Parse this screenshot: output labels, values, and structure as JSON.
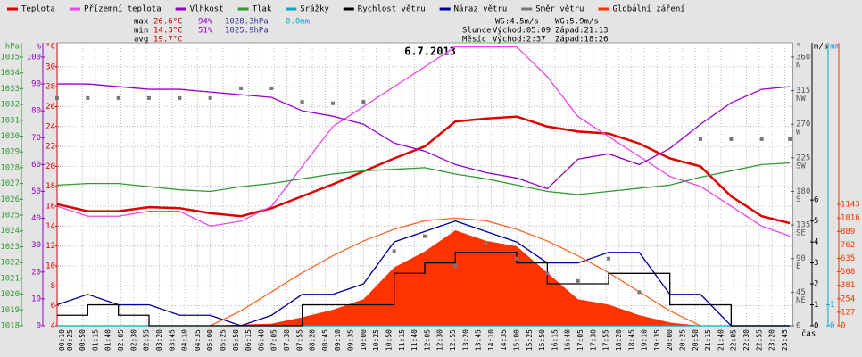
{
  "chart_data": {
    "type": "line",
    "title": "6.7.2013",
    "x_label": "čas",
    "stats": {
      "colors": [
        "#000000",
        "#cc0000",
        "#9900cc",
        "#333399",
        "#00aacc"
      ],
      "rows": [
        [
          "max",
          "26.6°C",
          "94%",
          "1028.3hPa",
          "0.0mm"
        ],
        [
          "min",
          "14.3°C",
          "51%",
          "1025.9hPa"
        ],
        [
          "avg",
          "19.7°C"
        ]
      ]
    },
    "info": [
      [
        "WS:4.5m/s",
        "WG:5.9m/s"
      ],
      [
        "Slunce",
        "Východ:05:09",
        "Západ:21:13"
      ],
      [
        "Měsíc",
        "Východ:2:37",
        "Západ:18:26"
      ]
    ],
    "xlim": [
      0,
      1440
    ],
    "xticks": [
      {
        "value": 10,
        "label": "00:10"
      },
      {
        "value": 25,
        "label": "00:25"
      },
      {
        "value": 50,
        "label": "00:50"
      },
      {
        "value": 75,
        "label": "01:15"
      },
      {
        "value": 100,
        "label": "01:40"
      },
      {
        "value": 125,
        "label": "02:05"
      },
      {
        "value": 150,
        "label": "02:30"
      },
      {
        "value": 175,
        "label": "02:55"
      },
      {
        "value": 200,
        "label": "03:20"
      },
      {
        "value": 225,
        "label": "03:45"
      },
      {
        "value": 250,
        "label": "04:10"
      },
      {
        "value": 275,
        "label": "04:35"
      },
      {
        "value": 300,
        "label": "05:00"
      },
      {
        "value": 325,
        "label": "05:25"
      },
      {
        "value": 350,
        "label": "05:50"
      },
      {
        "value": 375,
        "label": "06:15"
      },
      {
        "value": 400,
        "label": "06:40"
      },
      {
        "value": 425,
        "label": "07:05"
      },
      {
        "value": 450,
        "label": "07:30"
      },
      {
        "value": 475,
        "label": "07:55"
      },
      {
        "value": 500,
        "label": "08:20"
      },
      {
        "value": 525,
        "label": "08:45"
      },
      {
        "value": 550,
        "label": "09:10"
      },
      {
        "value": 575,
        "label": "09:35"
      },
      {
        "value": 600,
        "label": "10:00"
      },
      {
        "value": 625,
        "label": "10:25"
      },
      {
        "value": 650,
        "label": "10:50"
      },
      {
        "value": 675,
        "label": "11:15"
      },
      {
        "value": 700,
        "label": "11:40"
      },
      {
        "value": 725,
        "label": "12:05"
      },
      {
        "value": 750,
        "label": "12:30"
      },
      {
        "value": 775,
        "label": "12:55"
      },
      {
        "value": 800,
        "label": "13:20"
      },
      {
        "value": 825,
        "label": "13:45"
      },
      {
        "value": 850,
        "label": "14:10"
      },
      {
        "value": 875,
        "label": "14:35"
      },
      {
        "value": 900,
        "label": "15:00"
      },
      {
        "value": 925,
        "label": "15:25"
      },
      {
        "value": 950,
        "label": "15:50"
      },
      {
        "value": 975,
        "label": "16:15"
      },
      {
        "value": 1000,
        "label": "16:40"
      },
      {
        "value": 1025,
        "label": "17:05"
      },
      {
        "value": 1050,
        "label": "17:30"
      },
      {
        "value": 1075,
        "label": "17:55"
      },
      {
        "value": 1100,
        "label": "18:20"
      },
      {
        "value": 1125,
        "label": "18:45"
      },
      {
        "value": 1150,
        "label": "19:10"
      },
      {
        "value": 1175,
        "label": "19:35"
      },
      {
        "value": 1200,
        "label": "20:00"
      },
      {
        "value": 1225,
        "label": "20:25"
      },
      {
        "value": 1250,
        "label": "20:50"
      },
      {
        "value": 1275,
        "label": "21:15"
      },
      {
        "value": 1300,
        "label": "21:40"
      },
      {
        "value": 1325,
        "label": "22:05"
      },
      {
        "value": 1350,
        "label": "22:30"
      },
      {
        "value": 1375,
        "label": "22:55"
      },
      {
        "value": 1400,
        "label": "23:20"
      },
      {
        "value": 1425,
        "label": "23:45"
      }
    ],
    "axes": {
      "hpa": {
        "label": "hPa",
        "color": "#339933",
        "ylim": [
          1018,
          1035.9
        ],
        "yticks": [
          1018,
          1019,
          1020,
          1021,
          1022,
          1023,
          1024,
          1025,
          1026,
          1027,
          1028,
          1029,
          1030,
          1031,
          1032,
          1033,
          1034,
          1035
        ]
      },
      "pct": {
        "label": "%",
        "color": "#9900cc",
        "ylim": [
          0,
          105.3
        ],
        "yticks": [
          0,
          10,
          20,
          30,
          40,
          50,
          60,
          70,
          80,
          90,
          100
        ]
      },
      "temp": {
        "label": "°C",
        "color": "#dd0000",
        "ylim": [
          4,
          32.4
        ],
        "yticks": [
          4,
          6,
          8,
          10,
          12,
          14,
          16,
          18,
          20,
          22,
          24,
          26,
          28,
          30
        ],
        "grid": true
      },
      "dir": {
        "label": "°",
        "color": "#555555",
        "ylim": [
          0,
          379
        ],
        "yticks": [
          0,
          45,
          90,
          135,
          180,
          225,
          270,
          315,
          360
        ],
        "names": [
          null,
          "NE",
          "E",
          "SE",
          "S",
          "SW",
          "W",
          "NW",
          "N"
        ]
      },
      "ms": {
        "label": "m/s",
        "color": "#000000",
        "ylim": [
          0,
          13.5
        ],
        "yticks": [
          0,
          1,
          2,
          3,
          4,
          5,
          6
        ]
      },
      "mm": {
        "label": "mm",
        "color": "#00aacc",
        "ylim": [
          0,
          13.5
        ],
        "yticks": [
          0,
          1
        ]
      },
      "wm": {
        "color": "#ff3300",
        "ylim": [
          0,
          2667
        ],
        "yticks": [
          0,
          127,
          254,
          381,
          508,
          635,
          762,
          889,
          1016,
          1143
        ]
      }
    },
    "x": [
      0,
      60,
      120,
      180,
      240,
      300,
      360,
      420,
      480,
      540,
      600,
      660,
      720,
      780,
      840,
      900,
      960,
      1020,
      1080,
      1140,
      1200,
      1260,
      1320,
      1380,
      1435
    ],
    "series": [
      {
        "name": "Teplota",
        "color": "#dd0000",
        "axis": "temp",
        "style": "line",
        "values": [
          16.2,
          15.5,
          15.5,
          15.9,
          15.8,
          15.3,
          15.0,
          15.8,
          17.0,
          18.2,
          19.5,
          20.8,
          22.0,
          24.5,
          24.8,
          25.0,
          24.0,
          23.5,
          23.3,
          22.3,
          20.8,
          20.0,
          17.0,
          15.0,
          14.3
        ]
      },
      {
        "name": "Přízemní teplota",
        "color": "#ee44ee",
        "axis": "temp",
        "style": "line",
        "values": [
          16,
          15,
          15,
          15.5,
          15.5,
          14,
          14.5,
          16,
          20,
          24,
          26,
          28,
          30,
          32,
          32,
          32,
          29,
          25,
          23,
          21,
          19,
          18,
          16,
          14,
          13
        ]
      },
      {
        "name": "Vlhkost",
        "color": "#9900cc",
        "axis": "pct",
        "style": "line",
        "values": [
          90,
          90,
          89,
          88,
          88,
          87,
          86,
          85,
          80,
          78,
          75,
          68,
          65,
          60,
          57,
          55,
          51,
          62,
          64,
          60,
          66,
          75,
          83,
          88,
          89
        ]
      },
      {
        "name": "Tlak",
        "color": "#339933",
        "axis": "hpa",
        "style": "line",
        "values": [
          1026.9,
          1027.0,
          1027.0,
          1026.8,
          1026.6,
          1026.5,
          1026.8,
          1027.0,
          1027.3,
          1027.6,
          1027.8,
          1027.9,
          1028.0,
          1027.6,
          1027.3,
          1026.9,
          1026.5,
          1026.3,
          1026.5,
          1026.7,
          1026.9,
          1027.4,
          1027.8,
          1028.2,
          1028.3
        ]
      },
      {
        "name": "Srážky",
        "color": "#00aacc",
        "axis": "mm",
        "style": "line",
        "values": [
          0,
          0,
          0,
          0,
          0,
          0,
          0,
          0,
          0,
          0,
          0,
          0,
          0,
          0,
          0,
          0,
          0,
          0,
          0,
          0,
          0,
          0,
          0,
          0,
          0
        ]
      },
      {
        "name": "Rychlost větru",
        "color": "#000000",
        "axis": "ms",
        "style": "step",
        "values": [
          0.5,
          1,
          0.5,
          0,
          0,
          0,
          0,
          0,
          1,
          1,
          1,
          2.5,
          3,
          3.5,
          3.5,
          3,
          2,
          2,
          2.5,
          2.5,
          1,
          1,
          0,
          0,
          0
        ]
      },
      {
        "name": "Náraz větru",
        "color": "#000099",
        "axis": "ms",
        "style": "line",
        "values": [
          1,
          1.5,
          1,
          1,
          0.5,
          0.5,
          0,
          0.5,
          1.5,
          1.5,
          2,
          4,
          4.5,
          5,
          4.5,
          4,
          3,
          3,
          3.5,
          3.5,
          1.5,
          1.5,
          0,
          0,
          0
        ]
      },
      {
        "name": "Směr větru",
        "color": "#777777",
        "axis": "dir",
        "style": "squares",
        "values": [
          305,
          305,
          305,
          305,
          305,
          305,
          318,
          318,
          300,
          298,
          300,
          100,
          120,
          80,
          110,
          90,
          70,
          60,
          90,
          45,
          null,
          250,
          250,
          250,
          250
        ]
      },
      {
        "name": "Globální záření",
        "color": "#ff3300",
        "axis": "wm",
        "style": "area",
        "values": [
          0,
          0,
          0,
          0,
          0,
          0,
          10,
          20,
          80,
          150,
          250,
          550,
          700,
          900,
          800,
          750,
          500,
          250,
          200,
          100,
          30,
          0,
          0,
          0,
          0
        ]
      },
      {
        "color": "#ff6622",
        "axis": "wm",
        "style": "line",
        "values": [
          null,
          null,
          null,
          null,
          null,
          0,
          140,
          320,
          500,
          660,
          800,
          910,
          990,
          1015,
          990,
          910,
          800,
          660,
          500,
          320,
          140,
          0,
          null,
          null,
          null
        ]
      }
    ]
  }
}
